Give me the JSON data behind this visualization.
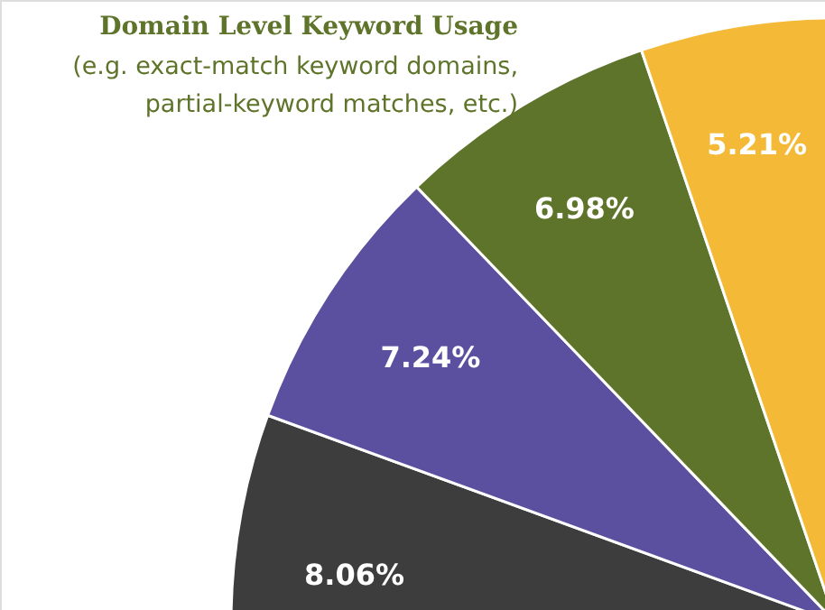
{
  "chart_data": {
    "type": "pie",
    "title": "Domain Level Keyword Usage",
    "subtitle": "(e.g. exact-match keyword domains,\npartial-keyword matches, etc.)",
    "categories": [
      null,
      null,
      null,
      null
    ],
    "values": [
      8.06,
      7.24,
      6.98,
      5.21
    ],
    "value_labels": [
      "8.06%",
      "7.24%",
      "6.98%",
      "5.21%"
    ],
    "colors": [
      "#3d3d3d",
      "#5b4f9f",
      "#5f742b",
      "#f5b938"
    ]
  }
}
